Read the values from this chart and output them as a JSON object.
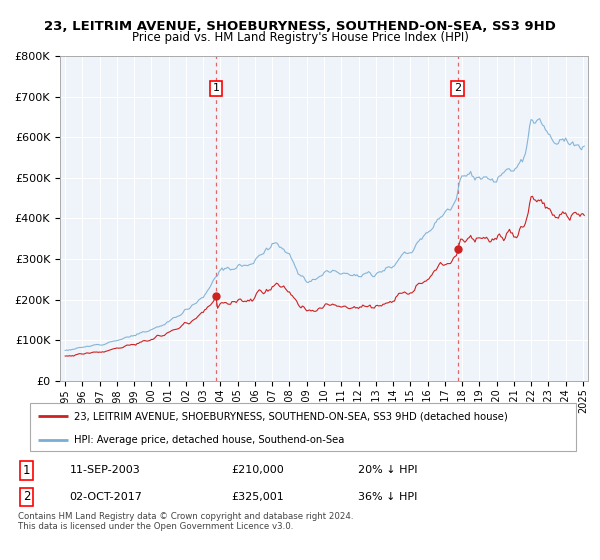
{
  "title": "23, LEITRIM AVENUE, SHOEBURYNESS, SOUTHEND-ON-SEA, SS3 9HD",
  "subtitle": "Price paid vs. HM Land Registry's House Price Index (HPI)",
  "legend_line1": "23, LEITRIM AVENUE, SHOEBURYNESS, SOUTHEND-ON-SEA, SS3 9HD (detached house)",
  "legend_line2": "HPI: Average price, detached house, Southend-on-Sea",
  "annotation1_date": "11-SEP-2003",
  "annotation1_price": "£210,000",
  "annotation1_hpi": "20% ↓ HPI",
  "annotation2_date": "02-OCT-2017",
  "annotation2_price": "£325,001",
  "annotation2_hpi": "36% ↓ HPI",
  "footnote": "Contains HM Land Registry data © Crown copyright and database right 2024.\nThis data is licensed under the Open Government Licence v3.0.",
  "sale1_year": 2003.75,
  "sale1_value": 210000,
  "sale2_year": 2017.75,
  "sale2_value": 325001,
  "hpi_color": "#7aadd4",
  "property_color": "#cc2222",
  "vline_color": "#dd4444",
  "ylim_max": 800000,
  "ylim_min": 0,
  "chart_bg": "#eef4fa",
  "title_fontsize": 10,
  "subtitle_fontsize": 9
}
